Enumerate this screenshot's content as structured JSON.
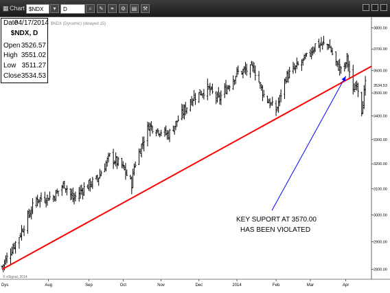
{
  "toolbar": {
    "app_label": "Chart",
    "symbol": "$NDX",
    "interval": "D",
    "min": "_",
    "max": "□",
    "close": "×"
  },
  "info": {
    "date_label": "Date",
    "date": "04/17/2014",
    "symbol_line": "$NDX, D",
    "open_label": "Open",
    "open": "3526.57",
    "high_label": "High",
    "high": "3551.02",
    "low_label": "Low",
    "low": "3511.27",
    "close_label": "Close",
    "close": "3534.53"
  },
  "colors": {
    "background": "#ffffff",
    "bars": "#000000",
    "trendline": "#ff0000",
    "arrow": "#0000ff",
    "toolbar": "#2a2a2a"
  },
  "chart_data": {
    "type": "ohlc",
    "header_note": "$NDX (Dynamic) (delayed 15)",
    "credit": "© eSignal, 2014",
    "xaxis_corner": "Dys",
    "y_scale": "log",
    "ylim": [
      2775,
      3835
    ],
    "yticks": [
      2800,
      2900,
      3000,
      3100,
      3200,
      3300,
      3400,
      3500,
      3600,
      3700,
      3800
    ],
    "last_value_label": "3534.53",
    "x_range": [
      "2013-06-24",
      "2014-04-22"
    ],
    "x_ticks": [
      {
        "label": "Aug",
        "date": "2013-08-01"
      },
      {
        "label": "Sep",
        "date": "2013-09-03"
      },
      {
        "label": "Oct",
        "date": "2013-10-01"
      },
      {
        "label": "Nov",
        "date": "2013-11-01"
      },
      {
        "label": "Dec",
        "date": "2013-12-02"
      },
      {
        "label": "2014",
        "date": "2014-01-02"
      },
      {
        "label": "Feb",
        "date": "2014-02-03"
      },
      {
        "label": "Mar",
        "date": "2014-03-03"
      },
      {
        "label": "Apr",
        "date": "2014-04-01"
      }
    ],
    "anchors": [
      {
        "date": "2013-06-24",
        "close": 2810
      },
      {
        "date": "2013-07-08",
        "close": 2920
      },
      {
        "date": "2013-07-22",
        "close": 3060
      },
      {
        "date": "2013-08-05",
        "close": 3070
      },
      {
        "date": "2013-08-14",
        "close": 3120
      },
      {
        "date": "2013-08-21",
        "close": 3060
      },
      {
        "date": "2013-08-29",
        "close": 3100
      },
      {
        "date": "2013-09-10",
        "close": 3140
      },
      {
        "date": "2013-09-20",
        "close": 3230
      },
      {
        "date": "2013-09-30",
        "close": 3190
      },
      {
        "date": "2013-10-08",
        "close": 3120
      },
      {
        "date": "2013-10-10",
        "close": 3190
      },
      {
        "date": "2013-10-22",
        "close": 3360
      },
      {
        "date": "2013-11-07",
        "close": 3320
      },
      {
        "date": "2013-11-27",
        "close": 3480
      },
      {
        "date": "2013-12-09",
        "close": 3520
      },
      {
        "date": "2013-12-18",
        "close": 3470
      },
      {
        "date": "2014-01-02",
        "close": 3590
      },
      {
        "date": "2014-01-16",
        "close": 3610
      },
      {
        "date": "2014-01-24",
        "close": 3490
      },
      {
        "date": "2014-02-03",
        "close": 3420
      },
      {
        "date": "2014-02-11",
        "close": 3570
      },
      {
        "date": "2014-02-28",
        "close": 3660
      },
      {
        "date": "2014-03-07",
        "close": 3720
      },
      {
        "date": "2014-03-18",
        "close": 3720
      },
      {
        "date": "2014-03-25",
        "close": 3620
      },
      {
        "date": "2014-03-31",
        "close": 3610
      },
      {
        "date": "2014-04-02",
        "close": 3660
      },
      {
        "date": "2014-04-07",
        "close": 3500
      },
      {
        "date": "2014-04-10",
        "close": 3550
      },
      {
        "date": "2014-04-14",
        "close": 3430
      },
      {
        "date": "2014-04-17",
        "close": 3534.53
      }
    ],
    "trendline": {
      "start": {
        "date": "2013-06-24",
        "value": 2800
      },
      "end": {
        "date": "2014-04-22",
        "value": 3620
      }
    },
    "annotation": {
      "lines": [
        "KEY SUPORT  AT  3570.00",
        "HAS BEEN VIOLATED"
      ],
      "target": {
        "date": "2014-04-01",
        "value": 3575
      }
    }
  }
}
